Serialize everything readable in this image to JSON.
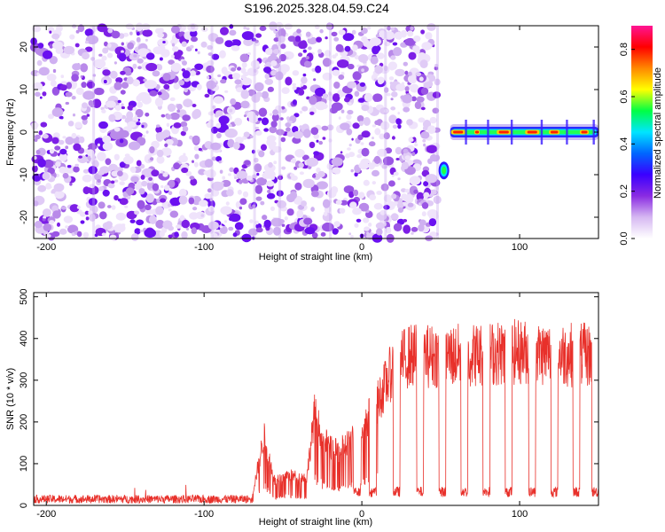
{
  "chart_data": [
    {
      "type": "heatmap",
      "title": "S196.2025.328.04.59.C24",
      "xlabel": "Height of straight line (km)",
      "ylabel": "Frequency (Hz)",
      "xlim": [
        -208,
        150
      ],
      "ylim": [
        -25,
        25
      ],
      "xticks": [
        -200,
        -100,
        0,
        100
      ],
      "yticks": [
        -20,
        -10,
        0,
        10,
        20
      ],
      "colorbar": {
        "label": "Normalized spectral amplitude",
        "range": [
          0,
          0.9
        ],
        "ticks": [
          "0.0",
          "0.2",
          "0.4",
          "0.6",
          "0.8"
        ],
        "colors": [
          "#ffffff",
          "#d6b8f2",
          "#8a2be2",
          "#3a00ff",
          "#0066ff",
          "#00e5ff",
          "#00ff44",
          "#ffff00",
          "#ff8800",
          "#ff0000",
          "#ff1493"
        ]
      },
      "features": {
        "noise_region_km": [
          -208,
          48
        ],
        "echo_blob": {
          "x_km": 52,
          "freq_hz": -9,
          "amplitude": 0.45
        },
        "carrier_band": {
          "x_start_km": 56,
          "x_end_km": 150,
          "freq_hz": 0,
          "peak_amplitude": 0.9
        }
      }
    },
    {
      "type": "line",
      "xlabel": "Height of straight line (km)",
      "ylabel": "SNR (10 * v/v)",
      "xlim": [
        -208,
        150
      ],
      "ylim": [
        0,
        510
      ],
      "xticks": [
        -200,
        -100,
        0,
        100
      ],
      "yticks": [
        0,
        100,
        200,
        300,
        400,
        500
      ],
      "series": [
        {
          "name": "SNR",
          "color": "#e8302a",
          "baseline_noise": 15,
          "envelope_x": [
            -208,
            -70,
            -62,
            -55,
            -48,
            -35,
            -30,
            -25,
            -20,
            -15,
            -10,
            0,
            10,
            20,
            30,
            40,
            60,
            80,
            100,
            120,
            150
          ],
          "envelope_y": [
            15,
            15,
            180,
            60,
            80,
            70,
            240,
            180,
            150,
            140,
            160,
            200,
            270,
            360,
            390,
            390,
            390,
            395,
            400,
            395,
            390
          ],
          "dropouts_x": [
            -3,
            7,
            22,
            37,
            51,
            65,
            79,
            93,
            108,
            122,
            136,
            148
          ]
        }
      ]
    }
  ]
}
